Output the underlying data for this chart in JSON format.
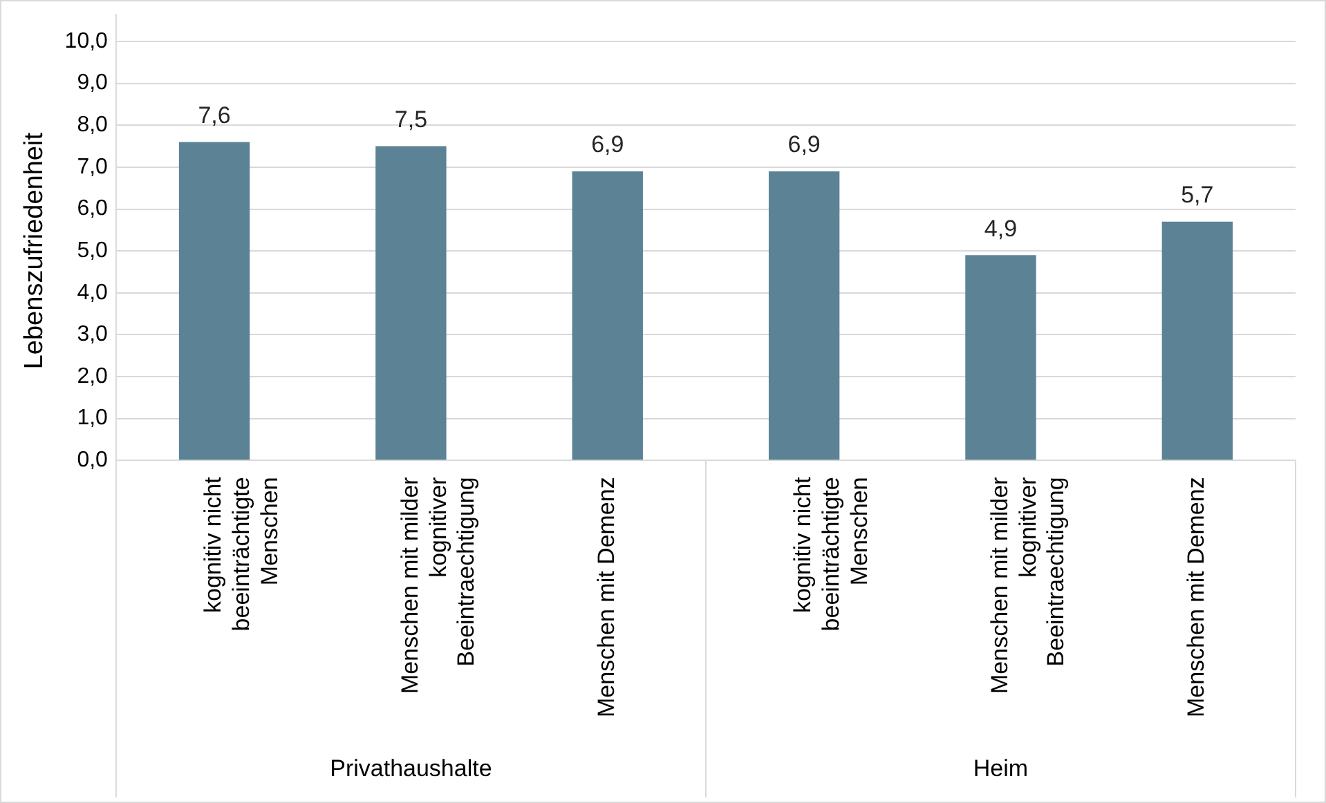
{
  "chart_data": {
    "type": "bar",
    "ylabel": "Lebenszufriedenheit",
    "categories": [
      "kognitiv nicht beeinträchtigte Menschen",
      "Menschen mit milder kognitiver Beeintraechtigung",
      "Menschen mit Demenz",
      "kognitiv nicht beeinträchtigte Menschen",
      "Menschen mit milder kognitiver Beeintraechtigung",
      "Menschen mit Demenz"
    ],
    "values": [
      7.6,
      7.5,
      6.9,
      6.9,
      4.9,
      5.7
    ],
    "value_labels": [
      "7,6",
      "7,5",
      "6,9",
      "6,9",
      "4,9",
      "5,7"
    ],
    "color": "#5b8295",
    "ylim": [
      0,
      10
    ],
    "yticks": [
      {
        "value": 0,
        "label": "0,0"
      },
      {
        "value": 1,
        "label": "1,0"
      },
      {
        "value": 2,
        "label": "2,0"
      },
      {
        "value": 3,
        "label": "3,0"
      },
      {
        "value": 4,
        "label": "4,0"
      },
      {
        "value": 5,
        "label": "5,0"
      },
      {
        "value": 6,
        "label": "6,0"
      },
      {
        "value": 7,
        "label": "7,0"
      },
      {
        "value": 8,
        "label": "8,0"
      },
      {
        "value": 9,
        "label": "9,0"
      },
      {
        "value": 10,
        "label": "10,0"
      }
    ],
    "grid": "y",
    "annotations": [
      "Privathaushalte",
      "Heim"
    ]
  }
}
